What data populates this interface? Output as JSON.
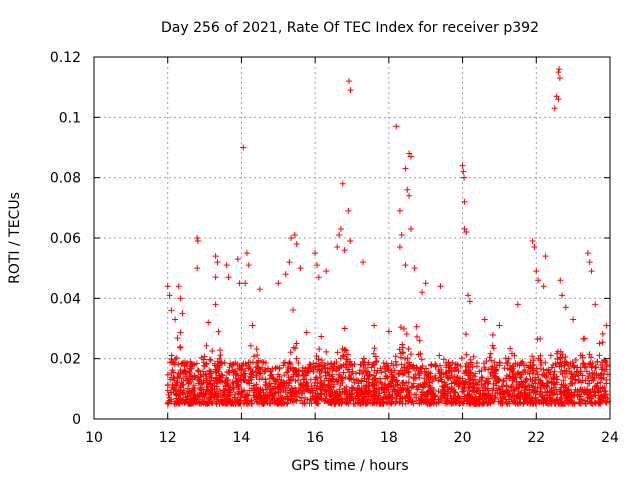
{
  "chart_data": {
    "type": "scatter",
    "title": "Day 256 of 2021, Rate Of TEC Index for receiver p392",
    "xlabel": "GPS time / hours",
    "ylabel": "ROTI / TECUs",
    "xlim": [
      10,
      24
    ],
    "ylim": [
      0,
      0.12
    ],
    "xticks": [
      "10",
      "12",
      "14",
      "16",
      "18",
      "20",
      "22",
      "24"
    ],
    "xtick_values": [
      10,
      12,
      14,
      16,
      18,
      20,
      22,
      24
    ],
    "yticks": [
      "0",
      "0.02",
      "0.04",
      "0.06",
      "0.08",
      "0.1",
      "0.12"
    ],
    "ytick_values": [
      0,
      0.02,
      0.04,
      0.06,
      0.08,
      0.1,
      0.12
    ],
    "grid": true,
    "marker": "+",
    "color": "#ff0000",
    "series": [
      {
        "name": "ROTI",
        "points": [
          [
            12.0,
            0.044
          ],
          [
            12.05,
            0.041
          ],
          [
            12.1,
            0.036
          ],
          [
            12.2,
            0.033
          ],
          [
            12.3,
            0.044
          ],
          [
            12.35,
            0.04
          ],
          [
            12.4,
            0.035
          ],
          [
            12.8,
            0.06
          ],
          [
            12.82,
            0.059
          ],
          [
            12.8,
            0.05
          ],
          [
            13.1,
            0.032
          ],
          [
            13.3,
            0.054
          ],
          [
            13.35,
            0.052
          ],
          [
            13.3,
            0.047
          ],
          [
            13.3,
            0.038
          ],
          [
            13.6,
            0.051
          ],
          [
            13.65,
            0.047
          ],
          [
            13.9,
            0.053
          ],
          [
            13.95,
            0.045
          ],
          [
            14.05,
            0.09
          ],
          [
            14.15,
            0.055
          ],
          [
            14.2,
            0.051
          ],
          [
            14.1,
            0.045
          ],
          [
            14.5,
            0.043
          ],
          [
            14.3,
            0.031
          ],
          [
            15.0,
            0.045
          ],
          [
            15.2,
            0.048
          ],
          [
            15.35,
            0.06
          ],
          [
            15.45,
            0.061
          ],
          [
            15.5,
            0.058
          ],
          [
            15.3,
            0.052
          ],
          [
            15.6,
            0.05
          ],
          [
            16.0,
            0.055
          ],
          [
            16.05,
            0.051
          ],
          [
            16.1,
            0.047
          ],
          [
            16.3,
            0.049
          ],
          [
            16.6,
            0.057
          ],
          [
            16.65,
            0.061
          ],
          [
            16.7,
            0.063
          ],
          [
            16.75,
            0.078
          ],
          [
            16.8,
            0.056
          ],
          [
            16.9,
            0.069
          ],
          [
            16.95,
            0.059
          ],
          [
            16.92,
            0.112
          ],
          [
            16.96,
            0.109
          ],
          [
            17.3,
            0.052
          ],
          [
            17.6,
            0.031
          ],
          [
            18.0,
            0.029
          ],
          [
            18.2,
            0.097
          ],
          [
            18.3,
            0.069
          ],
          [
            18.35,
            0.061
          ],
          [
            18.3,
            0.057
          ],
          [
            18.55,
            0.088
          ],
          [
            18.6,
            0.087
          ],
          [
            18.5,
            0.076
          ],
          [
            18.55,
            0.074
          ],
          [
            18.45,
            0.083
          ],
          [
            18.45,
            0.051
          ],
          [
            18.6,
            0.063
          ],
          [
            18.7,
            0.05
          ],
          [
            18.9,
            0.042
          ],
          [
            19.0,
            0.045
          ],
          [
            19.4,
            0.044
          ],
          [
            20.0,
            0.084
          ],
          [
            20.02,
            0.082
          ],
          [
            20.04,
            0.08
          ],
          [
            20.05,
            0.072
          ],
          [
            20.05,
            0.063
          ],
          [
            20.1,
            0.062
          ],
          [
            20.15,
            0.041
          ],
          [
            20.2,
            0.039
          ],
          [
            20.6,
            0.033
          ],
          [
            21.0,
            0.031
          ],
          [
            21.5,
            0.038
          ],
          [
            21.9,
            0.059
          ],
          [
            21.95,
            0.057
          ],
          [
            22.0,
            0.049
          ],
          [
            22.05,
            0.046
          ],
          [
            22.2,
            0.044
          ],
          [
            22.25,
            0.054
          ],
          [
            22.5,
            0.103
          ],
          [
            22.55,
            0.107
          ],
          [
            22.6,
            0.115
          ],
          [
            22.62,
            0.116
          ],
          [
            22.64,
            0.113
          ],
          [
            22.6,
            0.106
          ],
          [
            22.65,
            0.046
          ],
          [
            22.7,
            0.041
          ],
          [
            22.8,
            0.037
          ],
          [
            23.0,
            0.033
          ],
          [
            23.4,
            0.055
          ],
          [
            23.45,
            0.052
          ],
          [
            23.5,
            0.049
          ],
          [
            23.6,
            0.038
          ],
          [
            23.9,
            0.031
          ]
        ]
      }
    ]
  }
}
